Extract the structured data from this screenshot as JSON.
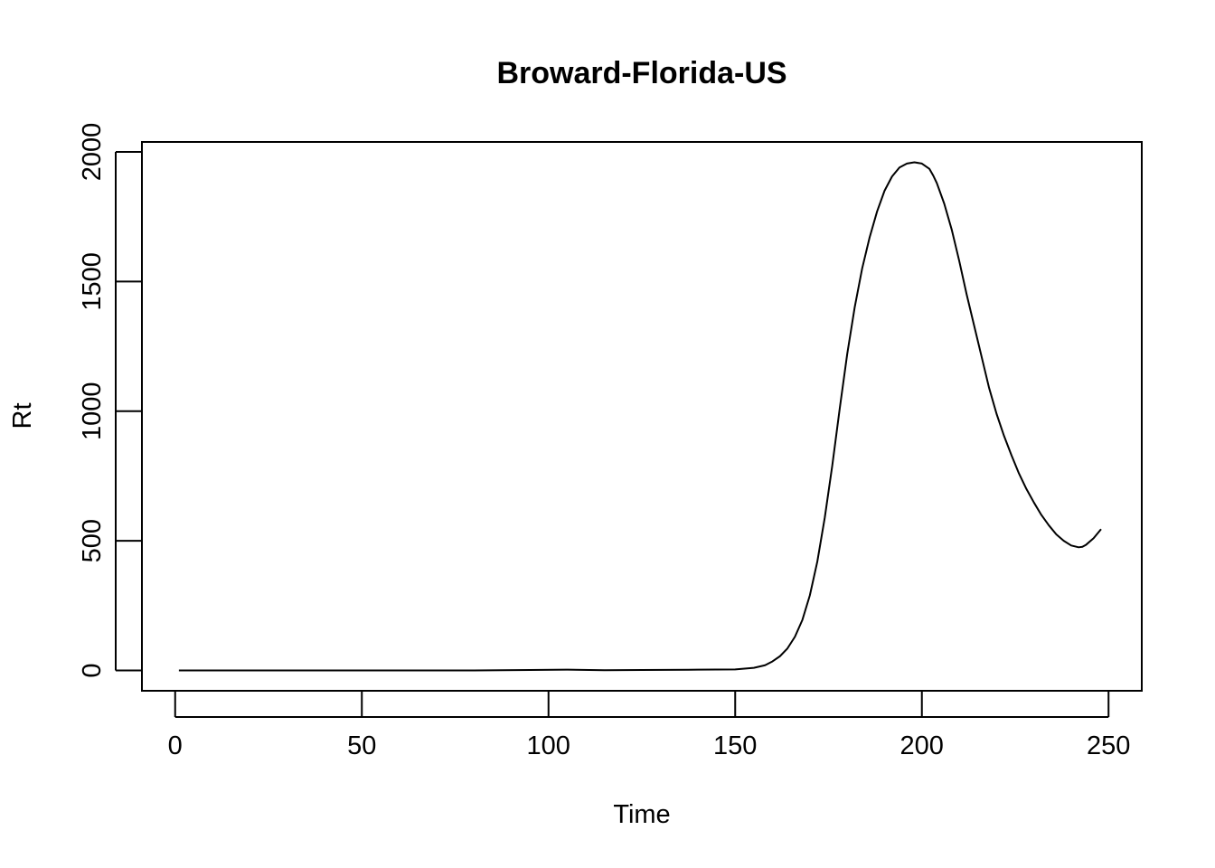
{
  "chart_data": {
    "type": "line",
    "title": "Broward-Florida-US",
    "xlabel": "Time",
    "ylabel": "Rt",
    "xlim": [
      -8.9,
      258.9
    ],
    "ylim": [
      -78.4,
      2038.4
    ],
    "xticks": [
      0,
      50,
      100,
      150,
      200,
      250
    ],
    "yticks": [
      0,
      500,
      1000,
      1500,
      2000
    ],
    "xtick_labels": [
      "0",
      "50",
      "100",
      "150",
      "200",
      "250"
    ],
    "ytick_labels": [
      "0",
      "500",
      "1000",
      "1500",
      "2000"
    ],
    "grid": false,
    "series": [
      {
        "x": [
          1,
          20,
          40,
          60,
          80,
          95,
          105,
          115,
          125,
          140,
          150,
          155,
          158,
          160,
          162,
          164,
          166,
          168,
          170,
          172,
          174,
          176,
          178,
          180,
          182,
          184,
          186,
          188,
          190,
          192,
          194,
          196,
          198,
          200,
          202,
          203,
          204,
          206,
          208,
          210,
          212,
          214,
          216,
          218,
          220,
          222,
          224,
          226,
          228,
          230,
          232,
          234,
          236,
          238,
          240,
          242,
          243,
          244,
          246,
          248
        ],
        "y": [
          0,
          0,
          0,
          0,
          0,
          2,
          3,
          1,
          2,
          3,
          4,
          10,
          20,
          35,
          55,
          85,
          130,
          195,
          290,
          420,
          590,
          790,
          1010,
          1220,
          1400,
          1550,
          1670,
          1770,
          1850,
          1905,
          1940,
          1955,
          1960,
          1955,
          1935,
          1910,
          1880,
          1800,
          1700,
          1580,
          1450,
          1330,
          1210,
          1090,
          990,
          905,
          830,
          760,
          700,
          648,
          600,
          560,
          525,
          500,
          482,
          475,
          477,
          485,
          510,
          545
        ]
      }
    ]
  }
}
